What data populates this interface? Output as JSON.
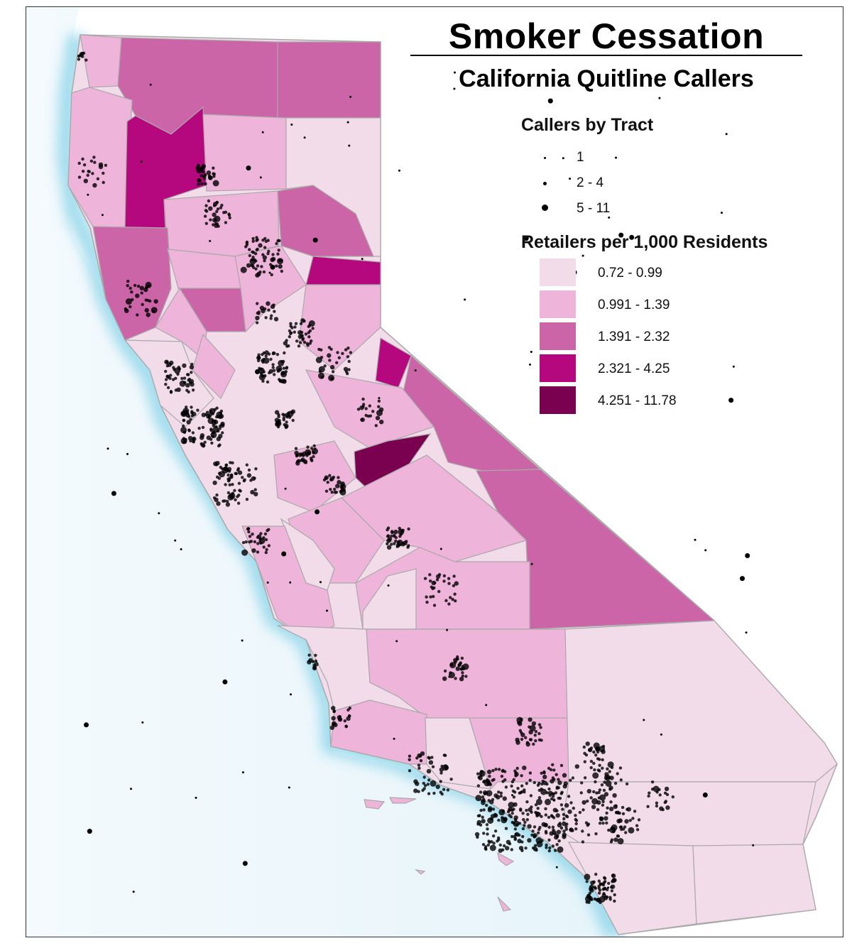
{
  "map": {
    "title": "Smoker Cessation",
    "subtitle": "California Quitline Callers"
  },
  "legend": {
    "callers": {
      "title": "Callers by Tract",
      "classes": [
        {
          "label": "1",
          "symbol": "small-dot"
        },
        {
          "label": "2 - 4",
          "symbol": "medium-dot"
        },
        {
          "label": "5 - 11",
          "symbol": "large-dot"
        }
      ]
    },
    "retailers": {
      "title": "Retailers per 1,000 Residents",
      "classes": [
        {
          "label": "0.72 - 0.99",
          "color": "#f2dce9"
        },
        {
          "label": "0.991 - 1.39",
          "color": "#efb4da"
        },
        {
          "label": "1.391 - 2.32",
          "color": "#cc65a7"
        },
        {
          "label": "2.321 - 4.25",
          "color": "#b5087e"
        },
        {
          "label": "4.251 - 11.78",
          "color": "#7a0050"
        }
      ]
    }
  },
  "colors": {
    "ocean": "#f0f8fc",
    "coast_glow": "#8fd6ea",
    "county_border": "#a9a9a9",
    "caller_dot": "#000000"
  }
}
